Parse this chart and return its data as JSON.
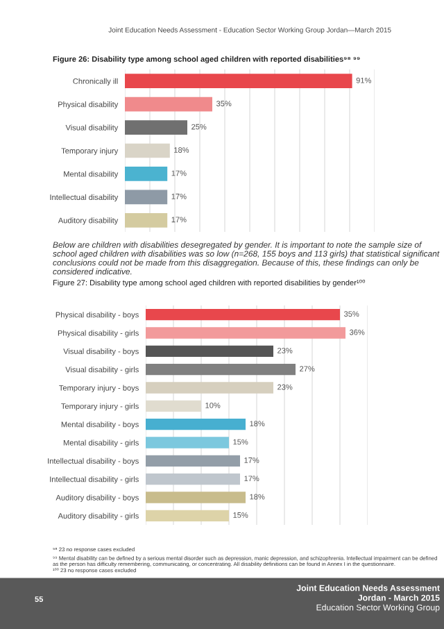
{
  "chart_data": [
    {
      "type": "bar",
      "orientation": "horizontal",
      "title": "Figure 26: Disability type among school aged children with reported disabilities⁹⁸ ⁹⁹",
      "categories": [
        "Chronically ill",
        "Physical disability",
        "Visual disability",
        "Temporary injury",
        "Mental disability",
        "Intellectual disability",
        "Auditory disability"
      ],
      "values": [
        91,
        35,
        25,
        18,
        17,
        17,
        17
      ],
      "value_labels": [
        "91%",
        "35%",
        "25%",
        "18%",
        "17%",
        "17%",
        "17%"
      ],
      "colors": [
        "#e8474c",
        "#f08a8c",
        "#707070",
        "#d9d4c7",
        "#4bb3d0",
        "#8e9aa6",
        "#d4cba0"
      ],
      "xlim": [
        0,
        100
      ],
      "xticks": [
        {
          "value": 0,
          "label": null
        },
        {
          "value": 10,
          "label": null
        },
        {
          "value": 20,
          "label": null
        },
        {
          "value": 30,
          "label": null
        },
        {
          "value": 40,
          "label": null
        },
        {
          "value": 50,
          "label": null
        },
        {
          "value": 60,
          "label": null
        },
        {
          "value": 70,
          "label": null
        },
        {
          "value": 80,
          "label": null
        },
        {
          "value": 90,
          "label": null
        },
        {
          "value": 100,
          "label": null
        }
      ],
      "tick_labels": "y",
      "grid": "x",
      "annotations": [
        "Joint Education Needs Assessment - Education Sector Working Group Jordan—March 2015"
      ]
    },
    {
      "type": "bar",
      "orientation": "horizontal",
      "title": "Figure 27: Disability type among school aged children with reported disabilities by gender¹⁰⁰",
      "categories": [
        "Physical disability - boys",
        "Physical disability - girls",
        "Visual disability - boys",
        "Visual disability - girls",
        "Temporary injury - boys",
        "Temporary injury - girls",
        "Mental disability - boys",
        "Mental disability - girls",
        "Intellectual disability - boys",
        "Intellectual disability - girls",
        "Auditory disability - boys",
        "Auditory disability - girls"
      ],
      "values": [
        35,
        36,
        23,
        27,
        23,
        10,
        18,
        15,
        17,
        17,
        18,
        15
      ],
      "value_labels": [
        "35%",
        "36%",
        "23%",
        "27%",
        "23%",
        "10%",
        "18%",
        "15%",
        "17%",
        "17%",
        "18%",
        "15%"
      ],
      "colors": [
        "#e8474c",
        "#f29a9b",
        "#555555",
        "#808080",
        "#d6cfbe",
        "#e0dccf",
        "#47afd0",
        "#7cc8de",
        "#939ea8",
        "#bfc6cd",
        "#c8bc8c",
        "#ddd3a8"
      ],
      "xlim": [
        0,
        40
      ],
      "xticks": [
        {
          "value": 0,
          "label": null
        },
        {
          "value": 5,
          "label": null
        },
        {
          "value": 10,
          "label": null
        },
        {
          "value": 15,
          "label": null
        },
        {
          "value": 20,
          "label": null
        },
        {
          "value": 25,
          "label": null
        },
        {
          "value": 30,
          "label": null
        },
        {
          "value": 35,
          "label": null
        },
        {
          "value": 40,
          "label": null
        }
      ],
      "tick_labels": "y",
      "grid": "x",
      "annotations": [
        "Below are children with disabilities desegregated by gender. It is important to note the sample size of school aged children with disabilities was so low (n=268, 155 boys and 113 girls) that statistical significant conclusions could not be made from this disaggregation. Because of this, these findings can only be considered indicative.",
        "⁹⁸ 23 no response cases excluded",
        "⁹⁹ Mental disability can be defined by a serious mental disorder such as depression, manic depression, and schizophrenia. Intellectual impairment can be defined as the person has difficulty remembering, communicating, or concentrating. All disability definitions can be found in Annex I in the questionnaire.",
        "¹⁰⁰ 23 no response cases excluded",
        "55",
        "Joint Education Needs Assessment",
        "Jordan - March 2015",
        "Education Sector Working Group"
      ]
    }
  ]
}
